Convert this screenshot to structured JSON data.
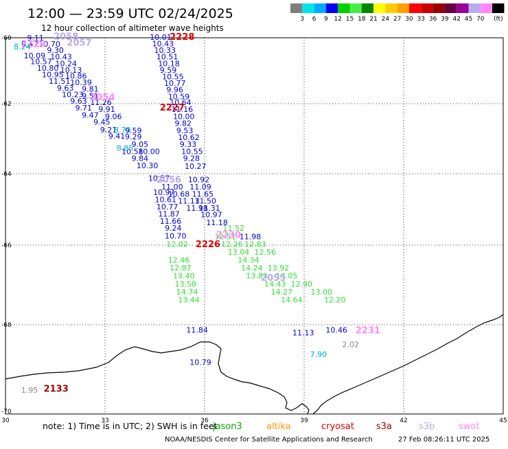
{
  "title": "12:00 — 23:59 UTC 02/24/2025",
  "subtitle": "12 hour collection of altimeter wave heights",
  "colorbar": {
    "colors": [
      "#7f7f7f",
      "#00e6e6",
      "#00aaff",
      "#0000ff",
      "#00d000",
      "#44ee44",
      "#008800",
      "#ffff00",
      "#ffcc00",
      "#ffa000",
      "#ff0000",
      "#cc0000",
      "#990000",
      "#6a0040",
      "#990099",
      "#bbaaee",
      "#ff88ff",
      "#000000"
    ],
    "labels": [
      "3",
      "6",
      "9",
      "12",
      "15",
      "18",
      "21",
      "24",
      "27",
      "30",
      "33",
      "36",
      "39",
      "42",
      "45",
      "70"
    ],
    "unit": "(ft)"
  },
  "axes": {
    "lon_ticks": [
      "30",
      "33",
      "36",
      "39",
      "42",
      "45"
    ],
    "lat_ticks": [
      "-60",
      "-62",
      "-64",
      "-66",
      "-68",
      "-70"
    ]
  },
  "note": "note: 1) Time is in UTC; 2) SWH is in feet",
  "satellites": [
    {
      "name": "jason3",
      "color": "#00aa00"
    },
    {
      "name": "altika",
      "color": "#ff9900"
    },
    {
      "name": "cryosat",
      "color": "#dd0000"
    },
    {
      "name": "s3a",
      "color": "#990000"
    },
    {
      "name": "s3b",
      "color": "#bbaaee"
    },
    {
      "name": "swot",
      "color": "#ff88ff"
    }
  ],
  "footer": {
    "credit": "NOAA/NESDIS Center for Satellite Applications and Research",
    "timestamp": "27 Feb 08:26:11 UTC 2025"
  },
  "colors": {
    "blue": "#0000cc",
    "lime": "#33dd33",
    "red": "#dd0000",
    "darkred": "#990000",
    "lilac": "#bbaaee",
    "pink": "#ff88ff",
    "cyan": "#00aacc",
    "gray": "#888888"
  },
  "pass_labels": [
    {
      "text": "2228",
      "color": "red",
      "lon": 34.95,
      "lat": -60.06
    },
    {
      "text": "2227",
      "color": "red",
      "lon": 34.65,
      "lat": -62.2
    },
    {
      "text": "2056",
      "color": "lilac",
      "lon": 34.55,
      "lat": -64.25
    },
    {
      "text": "2230",
      "color": "pink",
      "lon": 36.35,
      "lat": -65.8
    },
    {
      "text": "2226",
      "color": "red",
      "lon": 35.73,
      "lat": -66.05
    },
    {
      "text": "2055",
      "color": "lilac",
      "lon": 37.7,
      "lat": -66.9
    },
    {
      "text": "2231",
      "color": "pink",
      "lon": 40.55,
      "lat": -68.19
    },
    {
      "text": "2058",
      "color": "lilac",
      "lon": 31.45,
      "lat": -60.05
    },
    {
      "text": "2057",
      "color": "lilac",
      "lon": 31.85,
      "lat": -60.24
    },
    {
      "text": "2229",
      "color": "pink",
      "lon": 30.47,
      "lat": -60.28
    },
    {
      "text": "2054",
      "color": "pink",
      "lon": 32.55,
      "lat": -61.9
    },
    {
      "text": "2133",
      "color": "darkred",
      "lon": 31.15,
      "lat": -69.5
    },
    {
      "text": "1.95",
      "color": "gray",
      "lon": 30.47,
      "lat": -69.52
    },
    {
      "text": "2.02",
      "color": "gray",
      "lon": 40.15,
      "lat": -68.5
    },
    {
      "text": "7.90",
      "color": "cyan",
      "lon": 39.18,
      "lat": -68.72
    },
    {
      "text": "8.70",
      "color": "cyan",
      "lon": 33.27,
      "lat": -62.82
    },
    {
      "text": "8.85",
      "color": "cyan",
      "lon": 33.35,
      "lat": -63.34
    },
    {
      "text": "8.24",
      "color": "cyan",
      "lon": 30.25,
      "lat": -60.35
    }
  ],
  "wave_heights": [
    {
      "text": "10.01",
      "color": "blue",
      "lon": 34.35,
      "lat": -60.06
    },
    {
      "text": "10.43",
      "color": "blue",
      "lon": 34.42,
      "lat": -60.26
    },
    {
      "text": "10.33",
      "color": "blue",
      "lon": 34.48,
      "lat": -60.46
    },
    {
      "text": "10.51",
      "color": "blue",
      "lon": 34.55,
      "lat": -60.66
    },
    {
      "text": "10.18",
      "color": "blue",
      "lon": 34.6,
      "lat": -60.86
    },
    {
      "text": "9.59",
      "color": "blue",
      "lon": 34.65,
      "lat": -61.06
    },
    {
      "text": "10.55",
      "color": "blue",
      "lon": 34.72,
      "lat": -61.26
    },
    {
      "text": "10.77",
      "color": "blue",
      "lon": 34.78,
      "lat": -61.46
    },
    {
      "text": "9.96",
      "color": "blue",
      "lon": 34.85,
      "lat": -61.66
    },
    {
      "text": "10.59",
      "color": "blue",
      "lon": 34.9,
      "lat": -61.86
    },
    {
      "text": "10.64",
      "color": "blue",
      "lon": 34.95,
      "lat": -62.04
    },
    {
      "text": "11.16",
      "color": "blue",
      "lon": 35.0,
      "lat": -62.24
    },
    {
      "text": "10.00",
      "color": "blue",
      "lon": 35.05,
      "lat": -62.44
    },
    {
      "text": "9.82",
      "color": "blue",
      "lon": 35.1,
      "lat": -62.64
    },
    {
      "text": "9.53",
      "color": "blue",
      "lon": 35.15,
      "lat": -62.84
    },
    {
      "text": "10.62",
      "color": "blue",
      "lon": 35.2,
      "lat": -63.04
    },
    {
      "text": "9.33",
      "color": "blue",
      "lon": 35.25,
      "lat": -63.24
    },
    {
      "text": "10.55",
      "color": "blue",
      "lon": 35.3,
      "lat": -63.44
    },
    {
      "text": "9.28",
      "color": "blue",
      "lon": 35.35,
      "lat": -63.64
    },
    {
      "text": "10.27",
      "color": "blue",
      "lon": 35.4,
      "lat": -63.86
    },
    {
      "text": "10.92",
      "color": "blue",
      "lon": 35.5,
      "lat": -64.24
    },
    {
      "text": "11.09",
      "color": "blue",
      "lon": 35.55,
      "lat": -64.44
    },
    {
      "text": "11.65",
      "color": "blue",
      "lon": 35.62,
      "lat": -64.64
    },
    {
      "text": "11.50",
      "color": "blue",
      "lon": 35.7,
      "lat": -64.84
    },
    {
      "text": "11.31",
      "color": "blue",
      "lon": 35.82,
      "lat": -65.04
    },
    {
      "text": "10.97",
      "color": "blue",
      "lon": 35.88,
      "lat": -65.22
    },
    {
      "text": "9.11",
      "color": "blue",
      "lon": 30.65,
      "lat": -60.08
    },
    {
      "text": "9.42",
      "color": "blue",
      "lon": 30.48,
      "lat": -60.27
    },
    {
      "text": "10.70",
      "color": "blue",
      "lon": 31.0,
      "lat": -60.27
    },
    {
      "text": "9.30",
      "color": "blue",
      "lon": 31.25,
      "lat": -60.46
    },
    {
      "text": "10.09",
      "color": "blue",
      "lon": 30.55,
      "lat": -60.62
    },
    {
      "text": "10.43",
      "color": "blue",
      "lon": 31.35,
      "lat": -60.66
    },
    {
      "text": "10.57",
      "color": "blue",
      "lon": 30.75,
      "lat": -60.8
    },
    {
      "text": "10.24",
      "color": "blue",
      "lon": 31.5,
      "lat": -60.86
    },
    {
      "text": "10.80",
      "color": "blue",
      "lon": 30.95,
      "lat": -61.0
    },
    {
      "text": "10.13",
      "color": "blue",
      "lon": 31.65,
      "lat": -61.06
    },
    {
      "text": "10.95",
      "color": "blue",
      "lon": 31.1,
      "lat": -61.2
    },
    {
      "text": "10.86",
      "color": "blue",
      "lon": 31.8,
      "lat": -61.24
    },
    {
      "text": "11.51",
      "color": "blue",
      "lon": 31.3,
      "lat": -61.4
    },
    {
      "text": "10.39",
      "color": "blue",
      "lon": 31.95,
      "lat": -61.44
    },
    {
      "text": "9.63",
      "color": "blue",
      "lon": 31.55,
      "lat": -61.6
    },
    {
      "text": "9.81",
      "color": "blue",
      "lon": 32.3,
      "lat": -61.64
    },
    {
      "text": "10.23",
      "color": "blue",
      "lon": 31.7,
      "lat": -61.8
    },
    {
      "text": "9.51",
      "color": "blue",
      "lon": 32.3,
      "lat": -61.84
    },
    {
      "text": "9.63",
      "color": "blue",
      "lon": 31.95,
      "lat": -62.0
    },
    {
      "text": "11.26",
      "color": "blue",
      "lon": 32.55,
      "lat": -62.04
    },
    {
      "text": "9.71",
      "color": "blue",
      "lon": 32.1,
      "lat": -62.2
    },
    {
      "text": "9.91",
      "color": "blue",
      "lon": 32.8,
      "lat": -62.24
    },
    {
      "text": "9.47",
      "color": "blue",
      "lon": 32.3,
      "lat": -62.4
    },
    {
      "text": "9.06",
      "color": "blue",
      "lon": 33.0,
      "lat": -62.44
    },
    {
      "text": "9.45",
      "color": "blue",
      "lon": 32.65,
      "lat": -62.6
    },
    {
      "text": "9.21",
      "color": "blue",
      "lon": 32.85,
      "lat": -62.82
    },
    {
      "text": "9.59",
      "color": "blue",
      "lon": 33.6,
      "lat": -62.84
    },
    {
      "text": "9.41",
      "color": "blue",
      "lon": 33.1,
      "lat": -63.0
    },
    {
      "text": "9.29",
      "color": "blue",
      "lon": 33.6,
      "lat": -63.02
    },
    {
      "text": "9.05",
      "color": "blue",
      "lon": 33.8,
      "lat": -63.24
    },
    {
      "text": "10.58",
      "color": "blue",
      "lon": 33.5,
      "lat": -63.44
    },
    {
      "text": "10.00",
      "color": "blue",
      "lon": 34.0,
      "lat": -63.44
    },
    {
      "text": "9.84",
      "color": "blue",
      "lon": 33.8,
      "lat": -63.64
    },
    {
      "text": "10.30",
      "color": "blue",
      "lon": 33.95,
      "lat": -63.84
    },
    {
      "text": "10.57",
      "color": "blue",
      "lon": 34.3,
      "lat": -64.2
    },
    {
      "text": "11.00",
      "color": "blue",
      "lon": 34.7,
      "lat": -64.44
    },
    {
      "text": "10.97",
      "color": "blue",
      "lon": 34.45,
      "lat": -64.6
    },
    {
      "text": "10.68",
      "color": "blue",
      "lon": 34.9,
      "lat": -64.64
    },
    {
      "text": "10.61",
      "color": "blue",
      "lon": 34.5,
      "lat": -64.8
    },
    {
      "text": "11.13",
      "color": "blue",
      "lon": 35.2,
      "lat": -64.84
    },
    {
      "text": "10.77",
      "color": "blue",
      "lon": 34.55,
      "lat": -65.0
    },
    {
      "text": "11.98",
      "color": "blue",
      "lon": 35.45,
      "lat": -65.04
    },
    {
      "text": "11.87",
      "color": "blue",
      "lon": 34.6,
      "lat": -65.2
    },
    {
      "text": "11.66",
      "color": "blue",
      "lon": 34.65,
      "lat": -65.4
    },
    {
      "text": "11.18",
      "color": "blue",
      "lon": 36.05,
      "lat": -65.44
    },
    {
      "text": "9.24",
      "color": "blue",
      "lon": 34.8,
      "lat": -65.6
    },
    {
      "text": "10.70",
      "color": "blue",
      "lon": 34.8,
      "lat": -65.82
    },
    {
      "text": "11.98",
      "color": "blue",
      "lon": 37.05,
      "lat": -65.84
    },
    {
      "text": "11.84",
      "color": "blue",
      "lon": 35.45,
      "lat": -68.18
    },
    {
      "text": "10.79",
      "color": "blue",
      "lon": 35.55,
      "lat": -68.9
    },
    {
      "text": "11.13",
      "color": "blue",
      "lon": 38.65,
      "lat": -68.24
    },
    {
      "text": "10.46",
      "color": "blue",
      "lon": 39.65,
      "lat": -68.18
    },
    {
      "text": "11.52",
      "color": "lime",
      "lon": 36.55,
      "lat": -65.6
    },
    {
      "text": "12.51",
      "color": "lime",
      "lon": 36.3,
      "lat": -65.84
    },
    {
      "text": "12.26",
      "color": "lime",
      "lon": 36.5,
      "lat": -66.04
    },
    {
      "text": "12.83",
      "color": "lime",
      "lon": 37.2,
      "lat": -66.04
    },
    {
      "text": "13.04",
      "color": "lime",
      "lon": 36.7,
      "lat": -66.24
    },
    {
      "text": "12.56",
      "color": "lime",
      "lon": 37.5,
      "lat": -66.24
    },
    {
      "text": "14.34",
      "color": "lime",
      "lon": 37.0,
      "lat": -66.44
    },
    {
      "text": "13.92",
      "color": "lime",
      "lon": 37.9,
      "lat": -66.64
    },
    {
      "text": "14.24",
      "color": "lime",
      "lon": 37.1,
      "lat": -66.64
    },
    {
      "text": "14.05",
      "color": "lime",
      "lon": 38.15,
      "lat": -66.84
    },
    {
      "text": "13.83",
      "color": "lime",
      "lon": 37.25,
      "lat": -66.84
    },
    {
      "text": "12.90",
      "color": "lime",
      "lon": 38.6,
      "lat": -67.04
    },
    {
      "text": "14.43",
      "color": "lime",
      "lon": 37.8,
      "lat": -67.04
    },
    {
      "text": "13.00",
      "color": "lime",
      "lon": 39.2,
      "lat": -67.24
    },
    {
      "text": "14.27",
      "color": "lime",
      "lon": 38.0,
      "lat": -67.24
    },
    {
      "text": "12.20",
      "color": "lime",
      "lon": 39.6,
      "lat": -67.44
    },
    {
      "text": "14.64",
      "color": "lime",
      "lon": 38.3,
      "lat": -67.44
    },
    {
      "text": "12.02",
      "color": "lime",
      "lon": 34.85,
      "lat": -66.04
    },
    {
      "text": "12.46",
      "color": "lime",
      "lon": 34.9,
      "lat": -66.44
    },
    {
      "text": "12.87",
      "color": "lime",
      "lon": 34.95,
      "lat": -66.64
    },
    {
      "text": "13.40",
      "color": "lime",
      "lon": 35.05,
      "lat": -66.84
    },
    {
      "text": "13.58",
      "color": "lime",
      "lon": 35.1,
      "lat": -67.04
    },
    {
      "text": "14.74",
      "color": "lime",
      "lon": 35.15,
      "lat": -67.24
    },
    {
      "text": "13.44",
      "color": "lime",
      "lon": 35.2,
      "lat": -67.44
    }
  ]
}
